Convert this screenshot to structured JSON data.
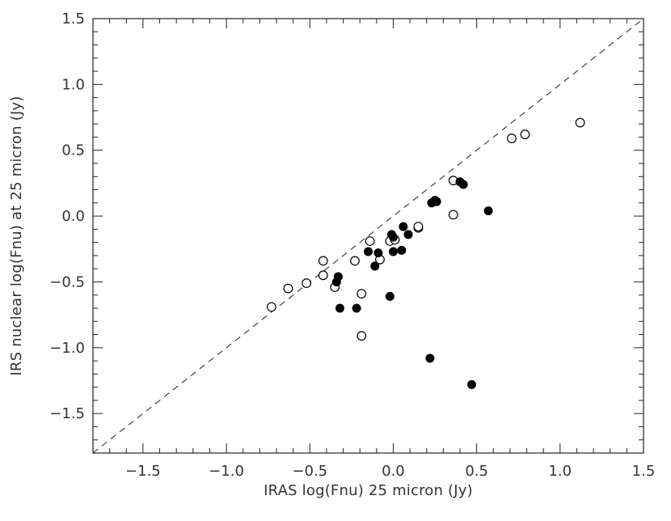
{
  "chart_data": {
    "type": "scatter",
    "title": "",
    "xlabel": "IRAS log(Fnu) 25 micron (Jy)",
    "ylabel": "IRS nuclear log(Fnu) at 25 micron (Jy)",
    "xlim": [
      -1.8,
      1.5
    ],
    "ylim": [
      -1.8,
      1.5
    ],
    "x_major_ticks": [
      -1.5,
      -1.0,
      -0.5,
      0.0,
      0.5,
      1.0,
      1.5
    ],
    "y_major_ticks": [
      -1.5,
      -1.0,
      -0.5,
      0.0,
      0.5,
      1.0,
      1.5
    ],
    "x_tick_labels": [
      "−1.5",
      "−1.0",
      "−0.5",
      "0.0",
      "0.5",
      "1.0",
      "1.5"
    ],
    "y_tick_labels": [
      "−1.5",
      "−1.0",
      "−0.5",
      "0.0",
      "0.5",
      "1.0",
      "1.5"
    ],
    "minor_tick_step": 0.1,
    "grid": false,
    "reference_line": {
      "style": "dashed",
      "slope": 1,
      "intercept": 0
    },
    "series": [
      {
        "marker": "open-circle",
        "points": [
          {
            "x": -0.73,
            "y": -0.69
          },
          {
            "x": -0.63,
            "y": -0.55
          },
          {
            "x": -0.52,
            "y": -0.51
          },
          {
            "x": -0.42,
            "y": -0.34
          },
          {
            "x": -0.42,
            "y": -0.45
          },
          {
            "x": -0.35,
            "y": -0.54
          },
          {
            "x": -0.23,
            "y": -0.34
          },
          {
            "x": -0.19,
            "y": -0.59
          },
          {
            "x": -0.19,
            "y": -0.91
          },
          {
            "x": -0.14,
            "y": -0.19
          },
          {
            "x": -0.08,
            "y": -0.33
          },
          {
            "x": -0.02,
            "y": -0.19
          },
          {
            "x": 0.01,
            "y": -0.18
          },
          {
            "x": 0.15,
            "y": -0.09
          },
          {
            "x": 0.15,
            "y": -0.08
          },
          {
            "x": 0.36,
            "y": 0.27
          },
          {
            "x": 0.36,
            "y": 0.01
          },
          {
            "x": 0.71,
            "y": 0.59
          },
          {
            "x": 0.79,
            "y": 0.62
          },
          {
            "x": 1.12,
            "y": 0.71
          }
        ]
      },
      {
        "marker": "filled-circle",
        "points": [
          {
            "x": -0.34,
            "y": -0.5
          },
          {
            "x": -0.33,
            "y": -0.46
          },
          {
            "x": -0.32,
            "y": -0.7
          },
          {
            "x": -0.22,
            "y": -0.7
          },
          {
            "x": -0.15,
            "y": -0.27
          },
          {
            "x": -0.11,
            "y": -0.38
          },
          {
            "x": -0.09,
            "y": -0.28
          },
          {
            "x": -0.02,
            "y": -0.61
          },
          {
            "x": -0.01,
            "y": -0.14
          },
          {
            "x": 0.0,
            "y": -0.16
          },
          {
            "x": 0.0,
            "y": -0.27
          },
          {
            "x": 0.05,
            "y": -0.26
          },
          {
            "x": 0.06,
            "y": -0.08
          },
          {
            "x": 0.09,
            "y": -0.14
          },
          {
            "x": 0.23,
            "y": 0.1
          },
          {
            "x": 0.25,
            "y": 0.12
          },
          {
            "x": 0.26,
            "y": 0.11
          },
          {
            "x": 0.22,
            "y": -1.08
          },
          {
            "x": 0.4,
            "y": 0.26
          },
          {
            "x": 0.42,
            "y": 0.24
          },
          {
            "x": 0.47,
            "y": -1.28
          },
          {
            "x": 0.57,
            "y": 0.04
          }
        ]
      }
    ]
  }
}
